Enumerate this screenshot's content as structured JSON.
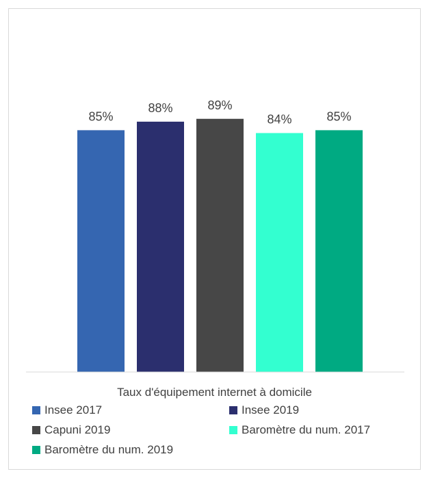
{
  "chart_data": {
    "type": "bar",
    "category": "Taux d'équipement internet à domicile",
    "ylim": [
      0,
      100
    ],
    "grid": false,
    "legend_position": "bottom",
    "series": [
      {
        "name": "Insee 2017",
        "value": 85,
        "label": "85%",
        "color": "#3566b1"
      },
      {
        "name": "Insee 2019",
        "value": 88,
        "label": "88%",
        "color": "#2b2f6e"
      },
      {
        "name": "Capuni 2019",
        "value": 89,
        "label": "89%",
        "color": "#474747"
      },
      {
        "name": "Baromètre du num. 2017",
        "value": 84,
        "label": "84%",
        "color": "#33ffd0"
      },
      {
        "name": "Baromètre du num. 2019",
        "value": 85,
        "label": "85%",
        "color": "#00aa82"
      }
    ]
  }
}
